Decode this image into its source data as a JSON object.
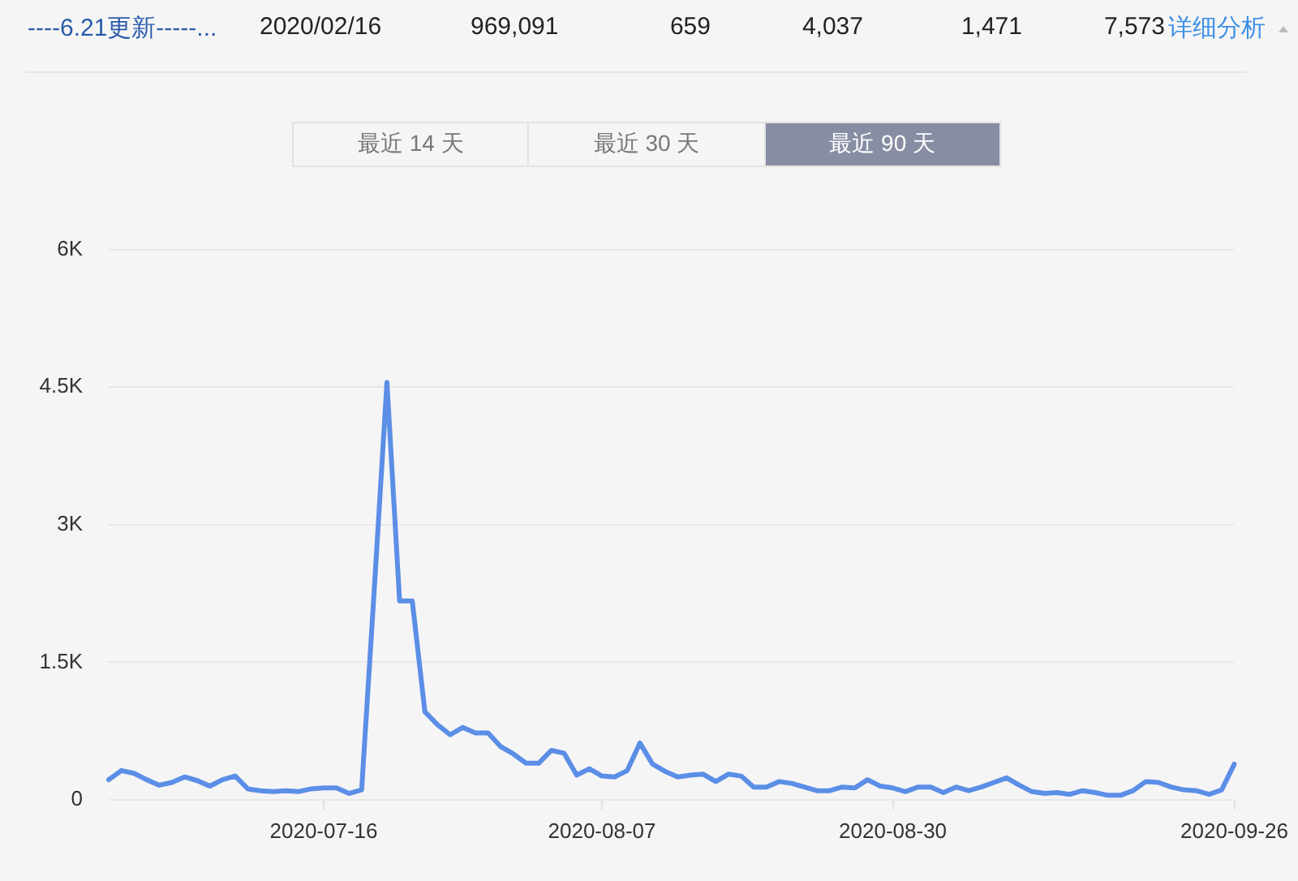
{
  "chart_data": {
    "type": "line",
    "annotations": [
      "----6.21更新-----...",
      "2020/02/16",
      "969,091",
      "659",
      "4,037",
      "1,471",
      "7,573",
      "详细分析",
      "最近 14 天",
      "最近 30 天",
      "最近 90 天"
    ],
    "categories": [
      null,
      null,
      null,
      null,
      null,
      null,
      null,
      null,
      null,
      null,
      null,
      null,
      null,
      null,
      null,
      null,
      null,
      "2020-07-16",
      null,
      null,
      null,
      null,
      null,
      null,
      null,
      null,
      null,
      null,
      null,
      null,
      null,
      null,
      null,
      null,
      null,
      null,
      null,
      null,
      null,
      "2020-08-07",
      null,
      null,
      null,
      null,
      null,
      null,
      null,
      null,
      null,
      null,
      null,
      null,
      null,
      null,
      null,
      null,
      null,
      null,
      null,
      null,
      null,
      null,
      "2020-08-30",
      null,
      null,
      null,
      null,
      null,
      null,
      null,
      null,
      null,
      null,
      null,
      null,
      null,
      null,
      null,
      null,
      null,
      null,
      null,
      null,
      null,
      null,
      null,
      null,
      null,
      null,
      "2020-09-26"
    ],
    "series": [
      {
        "color": "#5b8ee6",
        "values": [
          220,
          320,
          290,
          220,
          160,
          190,
          250,
          210,
          150,
          220,
          260,
          120,
          100,
          90,
          100,
          90,
          120,
          130,
          130,
          70,
          110,
          2300,
          4550,
          2170,
          2170,
          960,
          820,
          710,
          790,
          730,
          730,
          580,
          500,
          400,
          400,
          540,
          510,
          270,
          340,
          260,
          250,
          320,
          620,
          390,
          310,
          250,
          270,
          280,
          200,
          280,
          260,
          140,
          140,
          200,
          180,
          140,
          100,
          100,
          140,
          130,
          220,
          150,
          130,
          90,
          140,
          140,
          80,
          140,
          100,
          140,
          190,
          240,
          160,
          90,
          70,
          80,
          60,
          100,
          80,
          50,
          50,
          100,
          200,
          190,
          140,
          110,
          100,
          60,
          110,
          390
        ]
      }
    ],
    "ylim": [
      0,
      6000
    ],
    "yticks": [
      {
        "value": 0,
        "label": "0"
      },
      {
        "value": 1500,
        "label": "1.5K"
      },
      {
        "value": 3000,
        "label": "3K"
      },
      {
        "value": 4500,
        "label": "4.5K"
      },
      {
        "value": 6000,
        "label": "6K"
      }
    ],
    "grid": "y",
    "legend": false,
    "marker": "none",
    "line_style": "solid"
  }
}
